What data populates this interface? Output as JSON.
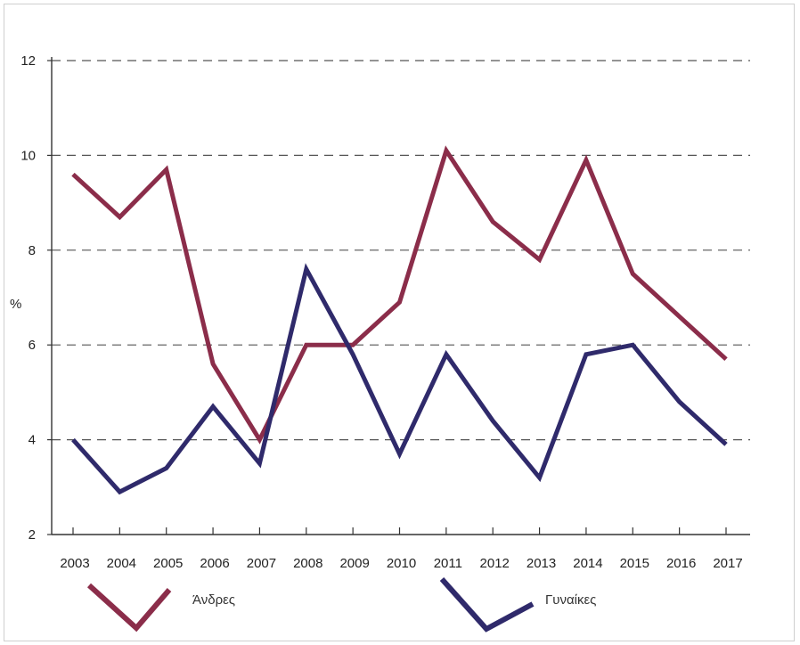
{
  "chart_data": {
    "type": "line",
    "title": "",
    "xlabel": "",
    "ylabel": "%",
    "x": [
      "2003",
      "2004",
      "2005",
      "2006",
      "2007",
      "2008",
      "2009",
      "2010",
      "2011",
      "2012",
      "2013",
      "2014",
      "2015",
      "2016",
      "2017"
    ],
    "ylim": [
      2,
      12
    ],
    "yticks": [
      "2",
      "4",
      "6",
      "8",
      "10",
      "12"
    ],
    "grid": "dashed horizontal",
    "legend_position": "bottom",
    "series": [
      {
        "name": "Άνδρες",
        "color": "#8b2d4a",
        "values": [
          9.6,
          8.7,
          9.7,
          5.6,
          4.0,
          6.0,
          6.0,
          6.9,
          10.1,
          8.6,
          7.8,
          9.9,
          7.5,
          6.6,
          5.7
        ]
      },
      {
        "name": "Γυναίκες",
        "color": "#2f2a6b",
        "values": [
          4.0,
          2.9,
          3.4,
          4.7,
          3.5,
          7.6,
          5.8,
          3.7,
          5.8,
          4.4,
          3.2,
          5.8,
          6.0,
          4.8,
          3.9
        ]
      }
    ]
  }
}
